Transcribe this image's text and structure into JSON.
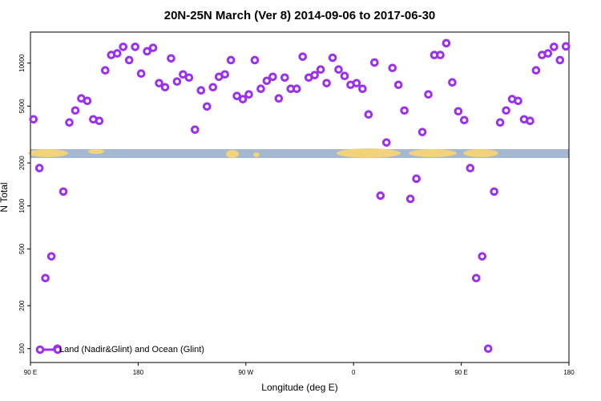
{
  "chart_data": {
    "type": "scatter",
    "title": "20N-25N March (Ver 8)   2014-09-06 to 2017-06-30",
    "x_label": "Longitude (deg E)",
    "y_label": "N Total",
    "x": [
      92.5,
      97.5,
      102.5,
      107.5,
      112.5,
      117.5,
      122.5,
      127.5,
      132.5,
      137.5,
      142.5,
      147.5,
      152.5,
      157.5,
      162.5,
      167.5,
      172.5,
      177.5,
      182.5,
      187.5,
      192.5,
      197.5,
      202.5,
      207.5,
      212.5,
      217.5,
      222.5,
      227.5,
      232.5,
      237.5,
      242.5,
      247.5,
      252.5,
      257.5,
      262.5,
      267.5,
      272.5,
      277.5,
      282.5,
      287.5,
      292.5,
      297.5,
      302.5,
      307.5,
      312.5,
      317.5,
      322.5,
      327.5,
      332.5,
      337.5,
      342.5,
      347.5,
      352.5,
      357.5,
      362.5,
      367.5,
      372.5,
      377.5,
      382.5,
      387.5,
      392.5,
      397.5,
      402.5,
      407.5,
      412.5,
      417.5,
      422.5,
      427.5,
      432.5,
      437.5,
      442.5,
      447.5,
      452.5,
      457.5,
      462.5,
      467.5,
      472.5,
      477.5,
      482.5,
      487.5,
      492.5,
      497.5,
      502.5,
      507.5,
      512.5,
      517.5,
      522.5,
      527.5,
      532.5,
      537.5
    ],
    "series": [
      {
        "name": "Land (Nadir&Glint) and Ocean (Glint)",
        "color": "#9b30f0",
        "values": [
          4040,
          1840,
          312,
          443,
          100,
          1260,
          3840,
          4660,
          5660,
          5440,
          4040,
          3940,
          8900,
          11400,
          11700,
          13000,
          10500,
          13000,
          8450,
          12100,
          12800,
          7240,
          6780,
          10800,
          7430,
          8340,
          7920,
          3420,
          6440,
          4970,
          6780,
          8020,
          8340,
          10500,
          5890,
          5590,
          6040,
          10500,
          6610,
          7520,
          8020,
          5660,
          7920,
          6610,
          6610,
          11100,
          7920,
          8240,
          9020,
          7240,
          10900,
          9020,
          8130,
          7050,
          7240,
          6610,
          4370,
          10100,
          1180,
          2780,
          9250,
          7050,
          4660,
          1120,
          1550,
          3290,
          6040,
          11400,
          11400,
          13800,
          7330,
          4600,
          3990,
          1840,
          312,
          443,
          100,
          1260,
          3840,
          4660,
          5600,
          5440,
          4040,
          3940,
          8900,
          11400,
          11700,
          13000,
          10500,
          13100
        ]
      }
    ],
    "xlim": [
      90,
      540
    ],
    "xticks": [
      {
        "value": 90,
        "label": "90 E"
      },
      180,
      {
        "value": 270,
        "label": "90 W"
      },
      {
        "value": 360,
        "label": "0"
      },
      {
        "value": 450,
        "label": "90 E"
      },
      180
    ],
    "ylim": [
      80,
      16500
    ],
    "yscale": "log",
    "yticks": [
      100,
      200,
      500,
      1000,
      2000,
      5000,
      10000
    ],
    "legend": "bottom left"
  }
}
